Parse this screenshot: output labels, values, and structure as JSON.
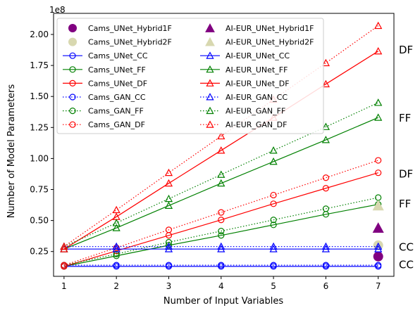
{
  "chart_data": {
    "type": "line",
    "xlabel": "Number of Input Variables",
    "ylabel": "Number of Model Parameters",
    "y_offset_label": "1e8",
    "x": [
      1,
      2,
      3,
      4,
      5,
      6,
      7
    ],
    "xlim": [
      0.8,
      7.3
    ],
    "ylim": [
      0.05,
      2.17
    ],
    "x_ticks": [
      "1",
      "2",
      "3",
      "4",
      "5",
      "6",
      "7"
    ],
    "y_ticks": [
      {
        "value": 0.25,
        "label": "0.25"
      },
      {
        "value": 0.5,
        "label": "0.50"
      },
      {
        "value": 0.75,
        "label": "0.75"
      },
      {
        "value": 1.0,
        "label": "1.00"
      },
      {
        "value": 1.25,
        "label": "1.25"
      },
      {
        "value": 1.5,
        "label": "1.50"
      },
      {
        "value": 1.75,
        "label": "1.75"
      },
      {
        "value": 2.0,
        "label": "2.00"
      }
    ],
    "grid": false,
    "legend_position": "upper-left",
    "colors": {
      "purple": "#800080",
      "tan": "#d8d8b0",
      "blue": "#0000ff",
      "green": "#008000",
      "red": "#ff0000",
      "axis": "#000000"
    },
    "series": [
      {
        "name": "Cams_UNet_Hybrid1F",
        "kind": "point",
        "marker": "circle",
        "filled": true,
        "color": "#800080",
        "x": [
          7
        ],
        "values": [
          0.21
        ]
      },
      {
        "name": "Cams_UNet_Hybrid2F",
        "kind": "point",
        "marker": "circle",
        "filled": true,
        "color": "#d8d8b0",
        "x": [
          7
        ],
        "values": [
          0.3
        ]
      },
      {
        "name": "Cams_UNet_CC",
        "kind": "line",
        "marker": "circle",
        "dash": "solid",
        "color": "#0000ff",
        "values": [
          0.13,
          0.13,
          0.13,
          0.13,
          0.13,
          0.13,
          0.13
        ]
      },
      {
        "name": "Cams_UNet_FF",
        "kind": "line",
        "marker": "circle",
        "dash": "solid",
        "color": "#008000",
        "values": [
          0.13,
          0.215,
          0.3,
          0.38,
          0.465,
          0.55,
          0.63
        ]
      },
      {
        "name": "Cams_UNet_DF",
        "kind": "line",
        "marker": "circle",
        "dash": "solid",
        "color": "#ff0000",
        "values": [
          0.13,
          0.255,
          0.38,
          0.505,
          0.635,
          0.76,
          0.885
        ]
      },
      {
        "name": "Cams_GAN_CC",
        "kind": "line",
        "marker": "circle",
        "dash": "dotted",
        "color": "#0000ff",
        "values": [
          0.14,
          0.14,
          0.14,
          0.14,
          0.14,
          0.14,
          0.14
        ]
      },
      {
        "name": "Cams_GAN_FF",
        "kind": "line",
        "marker": "circle",
        "dash": "dotted",
        "color": "#008000",
        "values": [
          0.14,
          0.23,
          0.325,
          0.415,
          0.505,
          0.595,
          0.685
        ]
      },
      {
        "name": "Cams_GAN_DF",
        "kind": "line",
        "marker": "circle",
        "dash": "dotted",
        "color": "#ff0000",
        "values": [
          0.14,
          0.28,
          0.425,
          0.565,
          0.705,
          0.845,
          0.985
        ]
      },
      {
        "name": "AI-EUR_UNet_Hybrid1F",
        "kind": "point",
        "marker": "triangle",
        "filled": true,
        "color": "#800080",
        "x": [
          7
        ],
        "values": [
          0.44
        ]
      },
      {
        "name": "AI-EUR_UNet_Hybrid2F",
        "kind": "point",
        "marker": "triangle",
        "filled": true,
        "color": "#d8d8b0",
        "x": [
          7
        ],
        "values": [
          0.62
        ]
      },
      {
        "name": "AI-EUR_UNet_CC",
        "kind": "line",
        "marker": "triangle",
        "dash": "solid",
        "color": "#0000ff",
        "values": [
          0.27,
          0.27,
          0.27,
          0.27,
          0.27,
          0.27,
          0.27
        ]
      },
      {
        "name": "AI-EUR_UNet_FF",
        "kind": "line",
        "marker": "triangle",
        "dash": "solid",
        "color": "#008000",
        "values": [
          0.27,
          0.44,
          0.62,
          0.8,
          0.975,
          1.15,
          1.33
        ]
      },
      {
        "name": "AI-EUR_UNet_DF",
        "kind": "line",
        "marker": "triangle",
        "dash": "solid",
        "color": "#ff0000",
        "values": [
          0.27,
          0.53,
          0.8,
          1.065,
          1.33,
          1.6,
          1.865
        ]
      },
      {
        "name": "AI-EUR_GAN_CC",
        "kind": "line",
        "marker": "triangle",
        "dash": "dotted",
        "color": "#0000ff",
        "values": [
          0.29,
          0.29,
          0.29,
          0.29,
          0.29,
          0.29,
          0.29
        ]
      },
      {
        "name": "AI-EUR_GAN_FF",
        "kind": "line",
        "marker": "triangle",
        "dash": "dotted",
        "color": "#008000",
        "values": [
          0.29,
          0.48,
          0.675,
          0.87,
          1.065,
          1.255,
          1.45
        ]
      },
      {
        "name": "AI-EUR_GAN_DF",
        "kind": "line",
        "marker": "triangle",
        "dash": "dotted",
        "color": "#ff0000",
        "values": [
          0.29,
          0.585,
          0.885,
          1.18,
          1.475,
          1.77,
          2.07
        ]
      }
    ],
    "annotations": [
      {
        "text": "DF",
        "y": 1.88
      },
      {
        "text": "FF",
        "y": 1.33
      },
      {
        "text": "DF",
        "y": 0.88
      },
      {
        "text": "FF",
        "y": 0.64
      },
      {
        "text": "CC",
        "y": 0.29
      },
      {
        "text": "CC",
        "y": 0.15
      }
    ]
  }
}
